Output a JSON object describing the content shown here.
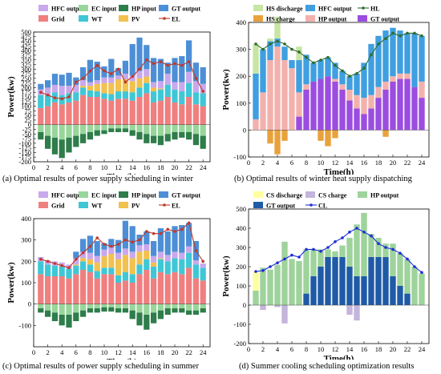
{
  "captions": {
    "a": "(a) Optimal results of power supply scheduling in winter",
    "b": "(b) Optimal results of winter heat supply dispatching",
    "c": "(c) Optimal results of power supply scheduling in summer",
    "d": "(d) Summer cooling scheduling optimization results"
  },
  "chart_data": [
    {
      "id": "a",
      "type": "bar",
      "stacked": true,
      "xlabel": "Time(h)",
      "ylabel": "Power(kw)",
      "xlim": [
        0,
        25
      ],
      "ylim": [
        -200,
        500
      ],
      "yticks": [
        -200,
        -175,
        -150,
        -125,
        -100,
        -75,
        -50,
        -25,
        0,
        25,
        50,
        75,
        100,
        125,
        150,
        175,
        200,
        225,
        250,
        275,
        300,
        325,
        350,
        375,
        400,
        425,
        450,
        475,
        500
      ],
      "xticks": [
        0,
        2,
        4,
        6,
        8,
        10,
        12,
        14,
        16,
        18,
        20,
        22,
        24
      ],
      "grid": false,
      "legend_position": "top",
      "categories": [
        1,
        2,
        3,
        4,
        5,
        6,
        7,
        8,
        9,
        10,
        11,
        12,
        13,
        14,
        15,
        16,
        17,
        18,
        19,
        20,
        21,
        22,
        23,
        24
      ],
      "series": [
        {
          "name": "Grid",
          "color": "#f07f7f",
          "values": [
            90,
            100,
            120,
            110,
            120,
            130,
            160,
            150,
            150,
            140,
            130,
            140,
            140,
            130,
            150,
            170,
            120,
            130,
            150,
            120,
            110,
            150,
            110,
            100
          ]
        },
        {
          "name": "WT",
          "color": "#3fc7d6",
          "values": [
            70,
            60,
            55,
            50,
            50,
            45,
            40,
            35,
            30,
            30,
            35,
            40,
            40,
            45,
            50,
            55,
            60,
            60,
            65,
            70,
            70,
            75,
            65,
            70
          ]
        },
        {
          "name": "PV",
          "color": "#f2c14e",
          "values": [
            0,
            0,
            0,
            0,
            0,
            0,
            10,
            25,
            40,
            55,
            60,
            65,
            65,
            60,
            50,
            35,
            20,
            5,
            0,
            0,
            0,
            0,
            0,
            0
          ]
        },
        {
          "name": "HFC output",
          "color": "#c9a8ec",
          "values": [
            30,
            40,
            40,
            50,
            40,
            40,
            30,
            20,
            20,
            30,
            30,
            20,
            30,
            30,
            40,
            40,
            30,
            40,
            60,
            40,
            50,
            60,
            60,
            50
          ]
        },
        {
          "name": "GT output",
          "color": "#4d8fd6",
          "values": [
            30,
            40,
            60,
            60,
            70,
            40,
            70,
            120,
            100,
            60,
            100,
            40,
            70,
            170,
            180,
            130,
            130,
            120,
            60,
            130,
            140,
            170,
            100,
            90
          ]
        },
        {
          "name": "EC input",
          "color": "#98d69b",
          "values": [
            -40,
            -60,
            -70,
            -80,
            -70,
            -60,
            -50,
            -40,
            -30,
            -30,
            -20,
            -20,
            -20,
            -30,
            -40,
            -50,
            -60,
            -60,
            -50,
            -40,
            -40,
            -40,
            -50,
            -60
          ]
        },
        {
          "name": "HP input",
          "color": "#2e7d4a",
          "values": [
            -40,
            -70,
            -90,
            -100,
            -80,
            -60,
            -50,
            -40,
            -30,
            -20,
            -20,
            -20,
            -20,
            -30,
            -40,
            -50,
            -40,
            -50,
            -40,
            -40,
            -30,
            -40,
            -60,
            -70
          ]
        }
      ],
      "line": {
        "name": "EL",
        "color": "#c0392b",
        "values": [
          175,
          160,
          145,
          140,
          150,
          230,
          250,
          290,
          320,
          290,
          275,
          300,
          230,
          260,
          300,
          350,
          330,
          340,
          320,
          330,
          320,
          340,
          250,
          180
        ]
      }
    },
    {
      "id": "b",
      "type": "bar",
      "stacked": true,
      "xlabel": "Time(h)",
      "ylabel": "Power(kw)",
      "xlim": [
        0,
        25
      ],
      "ylim": [
        -100,
        400
      ],
      "yticks": [
        -100,
        0,
        100,
        200,
        300,
        400
      ],
      "xticks": [
        0,
        2,
        4,
        6,
        8,
        10,
        12,
        14,
        16,
        18,
        20,
        22,
        24
      ],
      "grid": false,
      "legend_position": "top",
      "categories": [
        1,
        2,
        3,
        4,
        5,
        6,
        7,
        8,
        9,
        10,
        11,
        12,
        13,
        14,
        15,
        16,
        17,
        18,
        19,
        20,
        21,
        22,
        23,
        24
      ],
      "series": [
        {
          "name": "GT output",
          "color": "#9b4de0",
          "values": [
            0,
            0,
            0,
            0,
            0,
            0,
            50,
            150,
            180,
            190,
            200,
            180,
            150,
            110,
            80,
            60,
            80,
            120,
            150,
            180,
            190,
            190,
            160,
            120
          ]
        },
        {
          "name": "HP output",
          "color": "#f3b1ad",
          "values": [
            40,
            140,
            260,
            310,
            260,
            230,
            90,
            20,
            0,
            0,
            0,
            10,
            20,
            40,
            50,
            60,
            50,
            40,
            30,
            20,
            20,
            20,
            0,
            60
          ]
        },
        {
          "name": "HFC output",
          "color": "#3f9fe0",
          "values": [
            170,
            160,
            70,
            30,
            50,
            30,
            120,
            110,
            70,
            70,
            70,
            60,
            50,
            50,
            80,
            130,
            190,
            190,
            190,
            180,
            160,
            150,
            200,
            170
          ]
        },
        {
          "name": "HS discharge",
          "color": "#c7e5a3",
          "values": [
            110,
            0,
            10,
            80,
            0,
            0,
            50,
            0,
            0,
            0,
            0,
            0,
            0,
            0,
            0,
            0,
            0,
            0,
            0,
            0,
            0,
            0,
            0,
            0
          ]
        },
        {
          "name": "HS charge",
          "color": "#e8a23c",
          "values": [
            0,
            0,
            -50,
            -90,
            -40,
            0,
            0,
            0,
            0,
            -40,
            -60,
            -30,
            0,
            0,
            0,
            0,
            0,
            0,
            -25,
            0,
            0,
            0,
            0,
            0
          ]
        }
      ],
      "line": {
        "name": "HL",
        "color": "#2f6b2f",
        "values": [
          320,
          300,
          320,
          330,
          320,
          300,
          290,
          270,
          250,
          260,
          270,
          240,
          220,
          200,
          210,
          230,
          280,
          320,
          340,
          360,
          350,
          360,
          360,
          350
        ]
      }
    },
    {
      "id": "c",
      "type": "bar",
      "stacked": true,
      "xlabel": "Time(h)",
      "ylabel": "Power(kw)",
      "xlim": [
        0,
        25
      ],
      "ylim": [
        -200,
        400
      ],
      "yticks": [
        -100,
        0,
        100,
        200,
        300,
        400
      ],
      "xticks": [
        0,
        2,
        4,
        6,
        8,
        10,
        12,
        14,
        16,
        18,
        20,
        22,
        24
      ],
      "grid": false,
      "legend_position": "top",
      "categories": [
        1,
        2,
        3,
        4,
        5,
        6,
        7,
        8,
        9,
        10,
        11,
        12,
        13,
        14,
        15,
        16,
        17,
        18,
        19,
        20,
        21,
        22,
        23,
        24
      ],
      "series": [
        {
          "name": "Grid",
          "color": "#f07f7f",
          "values": [
            140,
            130,
            130,
            130,
            120,
            140,
            160,
            150,
            120,
            140,
            140,
            100,
            110,
            100,
            140,
            160,
            120,
            150,
            140,
            150,
            140,
            170,
            120,
            110
          ]
        },
        {
          "name": "WT",
          "color": "#3fc7d6",
          "values": [
            60,
            55,
            50,
            45,
            45,
            40,
            40,
            35,
            35,
            30,
            30,
            35,
            40,
            40,
            45,
            50,
            55,
            60,
            60,
            65,
            70,
            70,
            65,
            60
          ]
        },
        {
          "name": "PV",
          "color": "#f2c14e",
          "values": [
            0,
            0,
            0,
            0,
            0,
            5,
            15,
            25,
            40,
            55,
            65,
            75,
            80,
            75,
            60,
            40,
            20,
            5,
            0,
            0,
            0,
            0,
            0,
            0
          ]
        },
        {
          "name": "HFC output",
          "color": "#c9a8ec",
          "values": [
            20,
            20,
            20,
            20,
            20,
            30,
            30,
            30,
            30,
            30,
            30,
            30,
            30,
            30,
            30,
            30,
            30,
            30,
            30,
            30,
            30,
            30,
            20,
            20
          ]
        },
        {
          "name": "GT output",
          "color": "#4d8fd6",
          "values": [
            0,
            0,
            0,
            0,
            0,
            30,
            60,
            80,
            70,
            30,
            40,
            60,
            130,
            120,
            50,
            60,
            70,
            110,
            110,
            120,
            130,
            110,
            90,
            0
          ]
        },
        {
          "name": "EC input",
          "color": "#98d69b",
          "values": [
            -20,
            -30,
            -40,
            -50,
            -50,
            -40,
            -30,
            -20,
            -20,
            -15,
            -15,
            -20,
            -20,
            -30,
            -40,
            -50,
            -40,
            -30,
            -20,
            -20,
            -20,
            -30,
            -30,
            -20
          ]
        },
        {
          "name": "HP input",
          "color": "#2e7d4a",
          "values": [
            -20,
            -30,
            -40,
            -50,
            -60,
            -40,
            -30,
            -20,
            -20,
            -20,
            -20,
            -20,
            -20,
            -40,
            -60,
            -70,
            -50,
            -40,
            -30,
            -20,
            -20,
            -20,
            -20,
            -20
          ]
        }
      ],
      "line": {
        "name": "EL",
        "color": "#c0392b",
        "values": [
          210,
          200,
          190,
          180,
          170,
          210,
          240,
          270,
          310,
          280,
          270,
          280,
          300,
          290,
          300,
          340,
          330,
          330,
          350,
          340,
          350,
          380,
          250,
          200
        ]
      }
    },
    {
      "id": "d",
      "type": "bar",
      "stacked": true,
      "xlabel": "Time(h)",
      "ylabel": "Power(kw)",
      "xlim": [
        0,
        25
      ],
      "ylim": [
        -200,
        500
      ],
      "yticks": [
        -200,
        -100,
        0,
        100,
        200,
        300,
        400,
        500
      ],
      "xticks": [
        0,
        2,
        4,
        6,
        8,
        10,
        12,
        14,
        16,
        18,
        20,
        22,
        24
      ],
      "grid": false,
      "legend_position": "top",
      "categories": [
        1,
        2,
        3,
        4,
        5,
        6,
        7,
        8,
        9,
        10,
        11,
        12,
        13,
        14,
        15,
        16,
        17,
        18,
        19,
        20,
        21,
        22,
        23,
        24
      ],
      "series": [
        {
          "name": "GT output",
          "color": "#1f5aa6",
          "values": [
            0,
            0,
            0,
            0,
            0,
            0,
            0,
            60,
            150,
            200,
            250,
            250,
            250,
            200,
            150,
            150,
            250,
            250,
            250,
            150,
            100,
            60,
            0,
            0
          ]
        },
        {
          "name": "HP output",
          "color": "#9ed39b",
          "values": [
            75,
            195,
            185,
            210,
            330,
            240,
            230,
            230,
            140,
            90,
            40,
            30,
            60,
            150,
            270,
            330,
            120,
            100,
            70,
            170,
            170,
            180,
            200,
            165
          ]
        },
        {
          "name": "CS discharge",
          "color": "#ffff9e",
          "values": [
            100,
            0,
            0,
            0,
            0,
            0,
            0,
            0,
            0,
            0,
            0,
            0,
            0,
            0,
            0,
            0,
            0,
            0,
            0,
            0,
            0,
            0,
            0,
            0
          ]
        },
        {
          "name": "CS charge",
          "color": "#c4b5dc",
          "values": [
            0,
            -25,
            0,
            -10,
            -95,
            0,
            0,
            0,
            0,
            0,
            0,
            0,
            0,
            -50,
            -80,
            0,
            0,
            0,
            0,
            0,
            0,
            0,
            0,
            0
          ]
        }
      ],
      "line": {
        "name": "CL",
        "color": "#1e2fd6",
        "values": [
          175,
          180,
          200,
          220,
          240,
          260,
          250,
          290,
          290,
          280,
          300,
          330,
          350,
          380,
          400,
          380,
          360,
          320,
          300,
          290,
          270,
          240,
          200,
          170
        ]
      }
    }
  ]
}
